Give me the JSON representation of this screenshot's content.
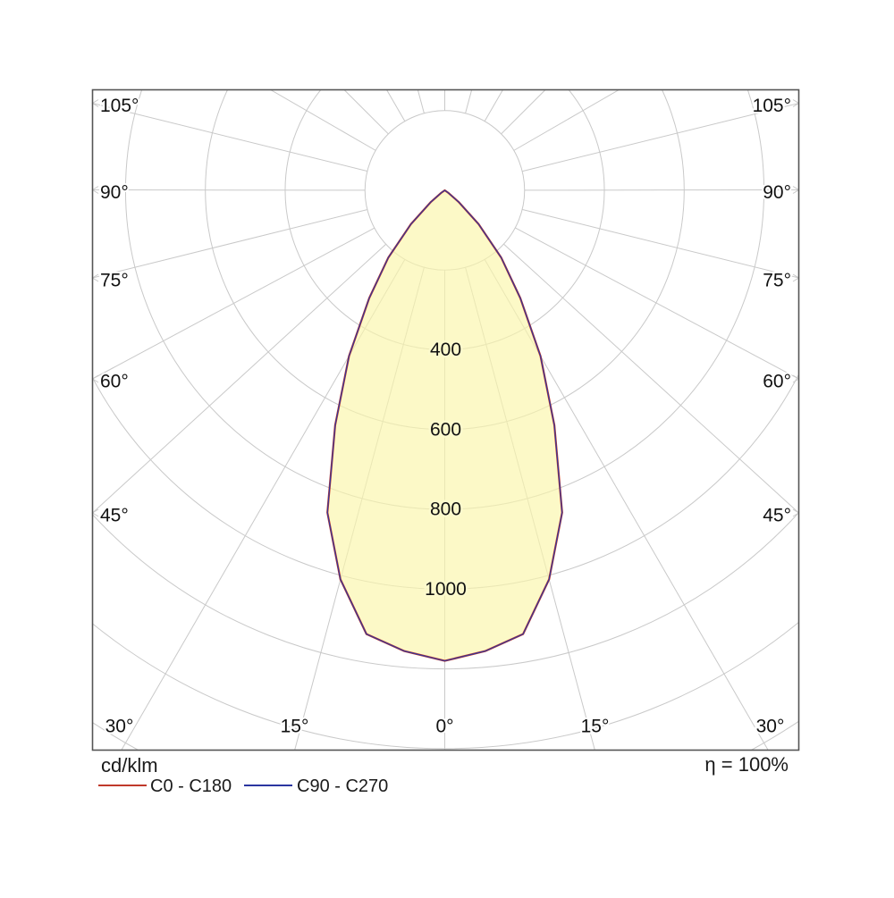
{
  "chart_data": {
    "type": "polar",
    "subtype": "photometric-intensity-distribution",
    "unit": "cd/klm",
    "efficiency": "η = 100%",
    "gamma_step_deg": 15,
    "ring_step": 200,
    "ring_max": 1600,
    "ring_labels": [
      "400",
      "600",
      "800",
      "1000"
    ],
    "ring_label_values": [
      400,
      600,
      800,
      1000
    ],
    "angle_labels_left": [
      "105°",
      "90°",
      "75°",
      "60°",
      "45°"
    ],
    "angle_labels_right": [
      "105°",
      "90°",
      "75°",
      "60°",
      "45°"
    ],
    "angle_labels_bottom": [
      "30°",
      "15°",
      "0°",
      "15°",
      "30°"
    ],
    "peak_intensity_cd_per_klm": 1180,
    "series": [
      {
        "name": "C0 - C180",
        "color": "#c0392b",
        "gamma_deg": [
          0,
          5,
          10,
          15,
          20,
          25,
          30,
          35,
          40,
          45,
          50,
          55,
          60
        ],
        "intensity_cd_per_klm": [
          1180,
          1160,
          1130,
          1010,
          860,
          650,
          480,
          330,
          220,
          120,
          45,
          10,
          0
        ]
      },
      {
        "name": "C90 - C270",
        "color": "#2b35a0",
        "gamma_deg": [
          0,
          5,
          10,
          15,
          20,
          25,
          30,
          35,
          40,
          45,
          50,
          55,
          60
        ],
        "intensity_cd_per_klm": [
          1180,
          1160,
          1130,
          1010,
          860,
          650,
          480,
          330,
          220,
          120,
          45,
          10,
          0
        ]
      }
    ],
    "fill_color": "#fcf8c9",
    "grid_color": "#c9c9c9",
    "frame_color": "#555555",
    "legend_position": "bottom"
  },
  "legend": {
    "unit": "cd/klm",
    "series": [
      {
        "label": "C0 - C180"
      },
      {
        "label": "C90 - C270"
      }
    ],
    "efficiency": "η = 100%"
  }
}
